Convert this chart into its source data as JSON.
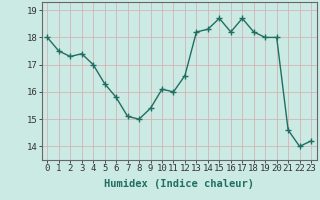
{
  "x": [
    0,
    1,
    2,
    3,
    4,
    5,
    6,
    7,
    8,
    9,
    10,
    11,
    12,
    13,
    14,
    15,
    16,
    17,
    18,
    19,
    20,
    21,
    22,
    23
  ],
  "y": [
    18.0,
    17.5,
    17.3,
    17.4,
    17.0,
    16.3,
    15.8,
    15.1,
    15.0,
    15.4,
    16.1,
    16.0,
    16.6,
    18.2,
    18.3,
    18.7,
    18.2,
    18.7,
    18.2,
    18.0,
    18.0,
    14.6,
    14.0,
    14.2
  ],
  "xlabel": "Humidex (Indice chaleur)",
  "ylim": [
    13.5,
    19.3
  ],
  "xlim": [
    -0.5,
    23.5
  ],
  "yticks": [
    14,
    15,
    16,
    17,
    18,
    19
  ],
  "xticks": [
    0,
    1,
    2,
    3,
    4,
    5,
    6,
    7,
    8,
    9,
    10,
    11,
    12,
    13,
    14,
    15,
    16,
    17,
    18,
    19,
    20,
    21,
    22,
    23
  ],
  "line_color": "#206e62",
  "marker": "+",
  "marker_size": 4,
  "bg_color": "#cceae4",
  "grid_color_v": "#d4aaaa",
  "grid_color_h": "#d4aaaa",
  "line_width": 1.0,
  "xlabel_fontsize": 7.5,
  "tick_fontsize": 6.5
}
